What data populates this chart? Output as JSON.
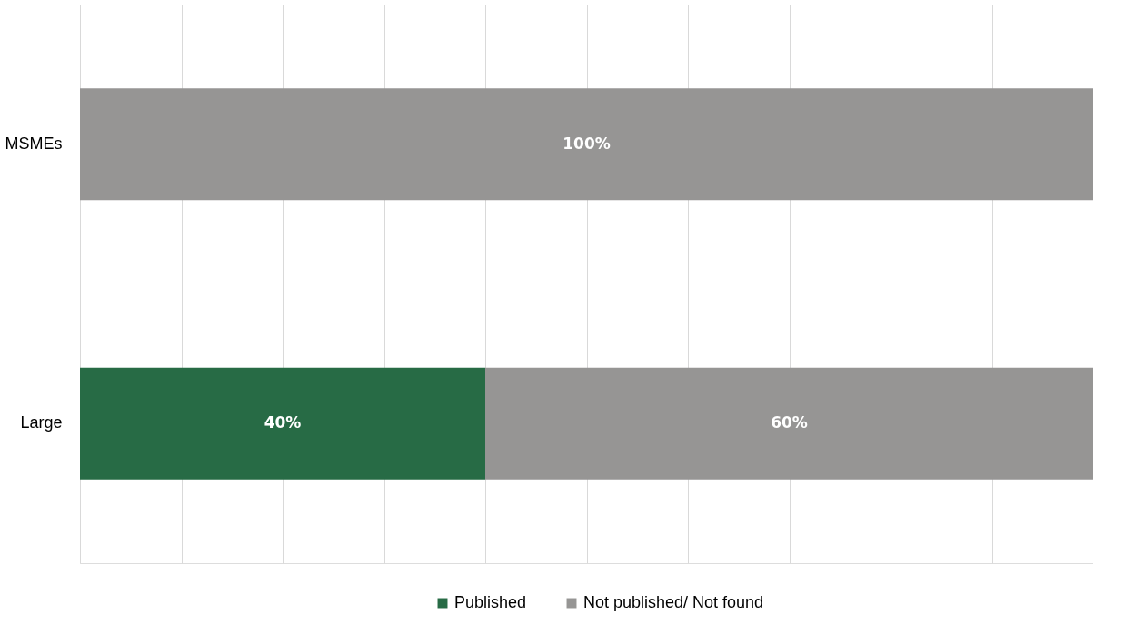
{
  "chart_data": {
    "type": "bar",
    "orientation": "horizontal",
    "stacked": true,
    "categories": [
      "MSMEs",
      "Large"
    ],
    "series": [
      {
        "name": "Published",
        "color": "#276b45",
        "values": [
          0,
          40
        ],
        "value_labels": [
          null,
          "40%"
        ]
      },
      {
        "name": "Not published/ Not found",
        "color": "#969594",
        "values": [
          100,
          60
        ],
        "value_labels": [
          "100%",
          "60%"
        ]
      }
    ],
    "xlim": [
      0,
      100
    ],
    "xticks": [
      {
        "value": 0,
        "label": null
      },
      {
        "value": 10,
        "label": null
      },
      {
        "value": 20,
        "label": null
      },
      {
        "value": 30,
        "label": null
      },
      {
        "value": 40,
        "label": null
      },
      {
        "value": 50,
        "label": null
      },
      {
        "value": 60,
        "label": null
      },
      {
        "value": 70,
        "label": null
      },
      {
        "value": 80,
        "label": null
      },
      {
        "value": 90,
        "label": null
      },
      {
        "value": 100,
        "label": null
      }
    ],
    "tick_labels": "y",
    "grid": "x",
    "legend": "bottom"
  }
}
